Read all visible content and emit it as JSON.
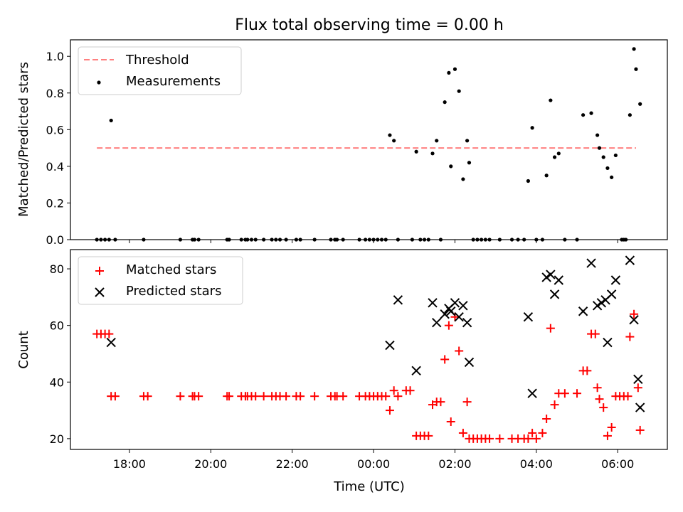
{
  "title": "Flux total observing time = 0.00 h",
  "x_axis": {
    "label": "Time (UTC)",
    "ticks": [
      "18:00",
      "20:00",
      "22:00",
      "00:00",
      "02:00",
      "04:00",
      "06:00"
    ],
    "tick_hours": [
      18,
      20,
      22,
      24,
      26,
      28,
      30
    ],
    "range_hours": [
      16.55,
      31.22
    ]
  },
  "chart_data": [
    {
      "type": "scatter",
      "ylabel": "Matched/Predicted stars",
      "ylim": [
        0,
        1.09
      ],
      "yticks": [
        "0.0",
        "0.2",
        "0.4",
        "0.6",
        "0.8",
        "1.0"
      ],
      "grid": false,
      "legend_position": "top-left",
      "legend": [
        {
          "label": "Threshold",
          "style": "dashed-line",
          "color": "#ff7f7f"
        },
        {
          "label": "Measurements",
          "style": "dot",
          "color": "#000000"
        }
      ],
      "threshold": {
        "value": 0.5,
        "x_start": 17.2,
        "x_end": 30.45
      },
      "series": [
        {
          "name": "Measurements",
          "points": [
            [
              17.2,
              0
            ],
            [
              17.3,
              0
            ],
            [
              17.4,
              0
            ],
            [
              17.5,
              0
            ],
            [
              17.55,
              0.65
            ],
            [
              17.65,
              0
            ],
            [
              18.35,
              0
            ],
            [
              19.25,
              0
            ],
            [
              19.55,
              0
            ],
            [
              19.6,
              0
            ],
            [
              19.7,
              0
            ],
            [
              20.4,
              0
            ],
            [
              20.45,
              0
            ],
            [
              20.75,
              0
            ],
            [
              20.85,
              0
            ],
            [
              20.9,
              0
            ],
            [
              21.0,
              0
            ],
            [
              21.1,
              0
            ],
            [
              21.3,
              0
            ],
            [
              21.5,
              0
            ],
            [
              21.6,
              0
            ],
            [
              21.7,
              0
            ],
            [
              21.85,
              0
            ],
            [
              22.1,
              0
            ],
            [
              22.2,
              0
            ],
            [
              22.55,
              0
            ],
            [
              22.95,
              0
            ],
            [
              23.05,
              0
            ],
            [
              23.1,
              0
            ],
            [
              23.25,
              0
            ],
            [
              23.65,
              0
            ],
            [
              23.8,
              0
            ],
            [
              23.9,
              0
            ],
            [
              24.0,
              0
            ],
            [
              24.1,
              0
            ],
            [
              24.2,
              0
            ],
            [
              24.3,
              0
            ],
            [
              24.4,
              0.57
            ],
            [
              24.5,
              0.54
            ],
            [
              24.6,
              0
            ],
            [
              24.95,
              0
            ],
            [
              25.05,
              0.48
            ],
            [
              25.15,
              0
            ],
            [
              25.25,
              0
            ],
            [
              25.35,
              0
            ],
            [
              25.45,
              0.47
            ],
            [
              25.55,
              0.54
            ],
            [
              25.65,
              0
            ],
            [
              25.75,
              0.75
            ],
            [
              25.85,
              0.91
            ],
            [
              25.9,
              0.4
            ],
            [
              26.0,
              0.93
            ],
            [
              26.1,
              0.81
            ],
            [
              26.2,
              0.33
            ],
            [
              26.3,
              0.54
            ],
            [
              26.35,
              0.42
            ],
            [
              26.45,
              0
            ],
            [
              26.55,
              0
            ],
            [
              26.65,
              0
            ],
            [
              26.75,
              0
            ],
            [
              26.85,
              0
            ],
            [
              27.1,
              0
            ],
            [
              27.4,
              0
            ],
            [
              27.55,
              0
            ],
            [
              27.7,
              0
            ],
            [
              27.8,
              0.32
            ],
            [
              27.9,
              0.61
            ],
            [
              28.0,
              0
            ],
            [
              28.15,
              0
            ],
            [
              28.25,
              0.35
            ],
            [
              28.35,
              0.76
            ],
            [
              28.45,
              0.45
            ],
            [
              28.55,
              0.47
            ],
            [
              28.7,
              0
            ],
            [
              29.0,
              0
            ],
            [
              29.15,
              0.68
            ],
            [
              29.35,
              0.69
            ],
            [
              29.5,
              0.57
            ],
            [
              29.55,
              0.5
            ],
            [
              29.65,
              0.45
            ],
            [
              29.75,
              0.39
            ],
            [
              29.85,
              0.34
            ],
            [
              29.95,
              0.46
            ],
            [
              30.1,
              0
            ],
            [
              30.15,
              0
            ],
            [
              30.2,
              0
            ],
            [
              30.3,
              0.68
            ],
            [
              30.4,
              1.04
            ],
            [
              30.45,
              0.93
            ],
            [
              30.55,
              0.74
            ]
          ]
        }
      ]
    },
    {
      "type": "scatter",
      "ylabel": "Count",
      "ylim": [
        16.2,
        86.8
      ],
      "yticks": [
        "20",
        "40",
        "60",
        "80"
      ],
      "grid": false,
      "legend_position": "top-left",
      "legend": [
        {
          "label": "Matched stars",
          "style": "plus",
          "color": "#ff0000"
        },
        {
          "label": "Predicted stars",
          "style": "x",
          "color": "#000000"
        }
      ],
      "series": [
        {
          "name": "Matched stars",
          "points": [
            [
              17.2,
              57
            ],
            [
              17.3,
              57
            ],
            [
              17.4,
              57
            ],
            [
              17.5,
              57
            ],
            [
              17.55,
              35
            ],
            [
              17.65,
              35
            ],
            [
              18.35,
              35
            ],
            [
              18.45,
              35
            ],
            [
              19.25,
              35
            ],
            [
              19.55,
              35
            ],
            [
              19.6,
              35
            ],
            [
              19.7,
              35
            ],
            [
              20.4,
              35
            ],
            [
              20.45,
              35
            ],
            [
              20.75,
              35
            ],
            [
              20.85,
              35
            ],
            [
              20.9,
              35
            ],
            [
              21.0,
              35
            ],
            [
              21.1,
              35
            ],
            [
              21.3,
              35
            ],
            [
              21.5,
              35
            ],
            [
              21.6,
              35
            ],
            [
              21.7,
              35
            ],
            [
              21.85,
              35
            ],
            [
              22.1,
              35
            ],
            [
              22.2,
              35
            ],
            [
              22.55,
              35
            ],
            [
              22.95,
              35
            ],
            [
              23.05,
              35
            ],
            [
              23.1,
              35
            ],
            [
              23.25,
              35
            ],
            [
              23.65,
              35
            ],
            [
              23.8,
              35
            ],
            [
              23.9,
              35
            ],
            [
              24.0,
              35
            ],
            [
              24.1,
              35
            ],
            [
              24.2,
              35
            ],
            [
              24.3,
              35
            ],
            [
              24.4,
              30
            ],
            [
              24.5,
              37
            ],
            [
              24.6,
              35
            ],
            [
              24.8,
              37
            ],
            [
              24.9,
              37
            ],
            [
              25.05,
              21
            ],
            [
              25.15,
              21
            ],
            [
              25.25,
              21
            ],
            [
              25.35,
              21
            ],
            [
              25.45,
              32
            ],
            [
              25.55,
              33
            ],
            [
              25.65,
              33
            ],
            [
              25.75,
              48
            ],
            [
              25.85,
              60
            ],
            [
              25.9,
              26
            ],
            [
              26.0,
              63
            ],
            [
              26.1,
              51
            ],
            [
              26.2,
              22
            ],
            [
              26.3,
              33
            ],
            [
              26.35,
              20
            ],
            [
              26.45,
              20
            ],
            [
              26.55,
              20
            ],
            [
              26.65,
              20
            ],
            [
              26.75,
              20
            ],
            [
              26.85,
              20
            ],
            [
              27.1,
              20
            ],
            [
              27.4,
              20
            ],
            [
              27.55,
              20
            ],
            [
              27.7,
              20
            ],
            [
              27.8,
              20
            ],
            [
              27.9,
              22
            ],
            [
              28.0,
              20
            ],
            [
              28.15,
              22
            ],
            [
              28.25,
              27
            ],
            [
              28.35,
              59
            ],
            [
              28.45,
              32
            ],
            [
              28.55,
              36
            ],
            [
              28.7,
              36
            ],
            [
              29.0,
              36
            ],
            [
              29.15,
              44
            ],
            [
              29.25,
              44
            ],
            [
              29.35,
              57
            ],
            [
              29.45,
              57
            ],
            [
              29.5,
              38
            ],
            [
              29.55,
              34
            ],
            [
              29.65,
              31
            ],
            [
              29.75,
              21
            ],
            [
              29.85,
              24
            ],
            [
              29.95,
              35
            ],
            [
              30.05,
              35
            ],
            [
              30.15,
              35
            ],
            [
              30.25,
              35
            ],
            [
              30.3,
              56
            ],
            [
              30.4,
              64
            ],
            [
              30.5,
              38
            ],
            [
              30.55,
              23
            ]
          ]
        },
        {
          "name": "Predicted stars",
          "points": [
            [
              17.55,
              54
            ],
            [
              24.4,
              53
            ],
            [
              24.6,
              69
            ],
            [
              25.05,
              44
            ],
            [
              25.45,
              68
            ],
            [
              25.55,
              61
            ],
            [
              25.75,
              64
            ],
            [
              25.85,
              66
            ],
            [
              25.9,
              65
            ],
            [
              26.0,
              68
            ],
            [
              26.1,
              63
            ],
            [
              26.2,
              67
            ],
            [
              26.3,
              61
            ],
            [
              26.35,
              47
            ],
            [
              27.8,
              63
            ],
            [
              27.9,
              36
            ],
            [
              28.25,
              77
            ],
            [
              28.35,
              78
            ],
            [
              28.45,
              71
            ],
            [
              28.55,
              76
            ],
            [
              29.15,
              65
            ],
            [
              29.35,
              82
            ],
            [
              29.5,
              67
            ],
            [
              29.6,
              68
            ],
            [
              29.7,
              69
            ],
            [
              29.75,
              54
            ],
            [
              29.85,
              71
            ],
            [
              29.95,
              76
            ],
            [
              30.3,
              83
            ],
            [
              30.4,
              62
            ],
            [
              30.5,
              41
            ],
            [
              30.55,
              31
            ]
          ]
        }
      ]
    }
  ]
}
